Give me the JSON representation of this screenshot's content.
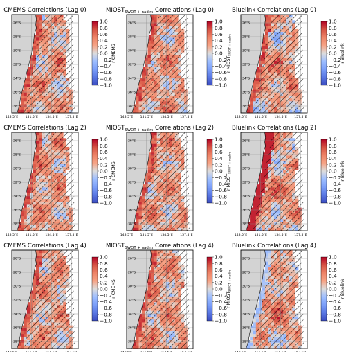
{
  "figure": {
    "panels": [
      {
        "title_main": "CMEMS Correlations (Lag 0)",
        "title_pre": "",
        "title_sub": "",
        "title_post": "",
        "cb_label_pre": "r CMEMS",
        "cb_label_sub": ""
      },
      {
        "title_main": "",
        "title_pre": "MIOST",
        "title_sub": "SWOT + nadirs",
        "title_post": " Correlations (Lag 0)",
        "cb_label_pre": "r MIOST",
        "cb_label_sub": "SWOT + nadirs"
      },
      {
        "title_main": "Bluelink Correlations (Lag 0)",
        "title_pre": "",
        "title_sub": "",
        "title_post": "",
        "cb_label_pre": "r Bluelink",
        "cb_label_sub": ""
      },
      {
        "title_main": "CMEMS Correlations (Lag 2)",
        "title_pre": "",
        "title_sub": "",
        "title_post": "",
        "cb_label_pre": "r CMEMS",
        "cb_label_sub": ""
      },
      {
        "title_main": "",
        "title_pre": "MIOST",
        "title_sub": "SWOT + nadirs",
        "title_post": " Correlations (Lag 2)",
        "cb_label_pre": "r MIOST",
        "cb_label_sub": "SWOT + nadirs"
      },
      {
        "title_main": "Bluelink Correlations (Lag 2)",
        "title_pre": "",
        "title_sub": "",
        "title_post": "",
        "cb_label_pre": "r Bluelink",
        "cb_label_sub": ""
      },
      {
        "title_main": "CMEMS Correlations (Lag 4)",
        "title_pre": "",
        "title_sub": "",
        "title_post": "",
        "cb_label_pre": "r CMEMS",
        "cb_label_sub": ""
      },
      {
        "title_main": "",
        "title_pre": "MIOST",
        "title_sub": "SWOT + nadirs",
        "title_post": " Correlations (Lag 4)",
        "cb_label_pre": "r MIOST",
        "cb_label_sub": "SWOT + nadirs"
      },
      {
        "title_main": "Bluelink Correlations (Lag 4)",
        "title_pre": "",
        "title_sub": "",
        "title_post": "",
        "cb_label_pre": "r Bluelink",
        "cb_label_sub": ""
      }
    ]
  },
  "chart_data": {
    "type": "heatmap",
    "layout": "3x3 grid of maps",
    "x_ticks": [
      "148.5°E",
      "151.5°E",
      "154.5°E",
      "157.5°E"
    ],
    "y_ticks": [
      "26°S",
      "28°S",
      "30°S",
      "32°S",
      "34°S",
      "36°S",
      "38°S"
    ],
    "x_range": [
      148.5,
      158.5
    ],
    "y_range": [
      -39,
      -24.8
    ],
    "colorbar": {
      "colormap": "coolwarm",
      "ticks": [
        "1.0",
        "0.8",
        "0.6",
        "0.4",
        "0.2",
        "0.0",
        "−0.2",
        "−0.4",
        "−0.6",
        "−0.8",
        "−1.0"
      ],
      "range": [
        -1.0,
        1.0
      ]
    },
    "land_color": "#d3d3d3",
    "hatch": "diagonal lines mark non-significant correlations",
    "grid": true
  }
}
